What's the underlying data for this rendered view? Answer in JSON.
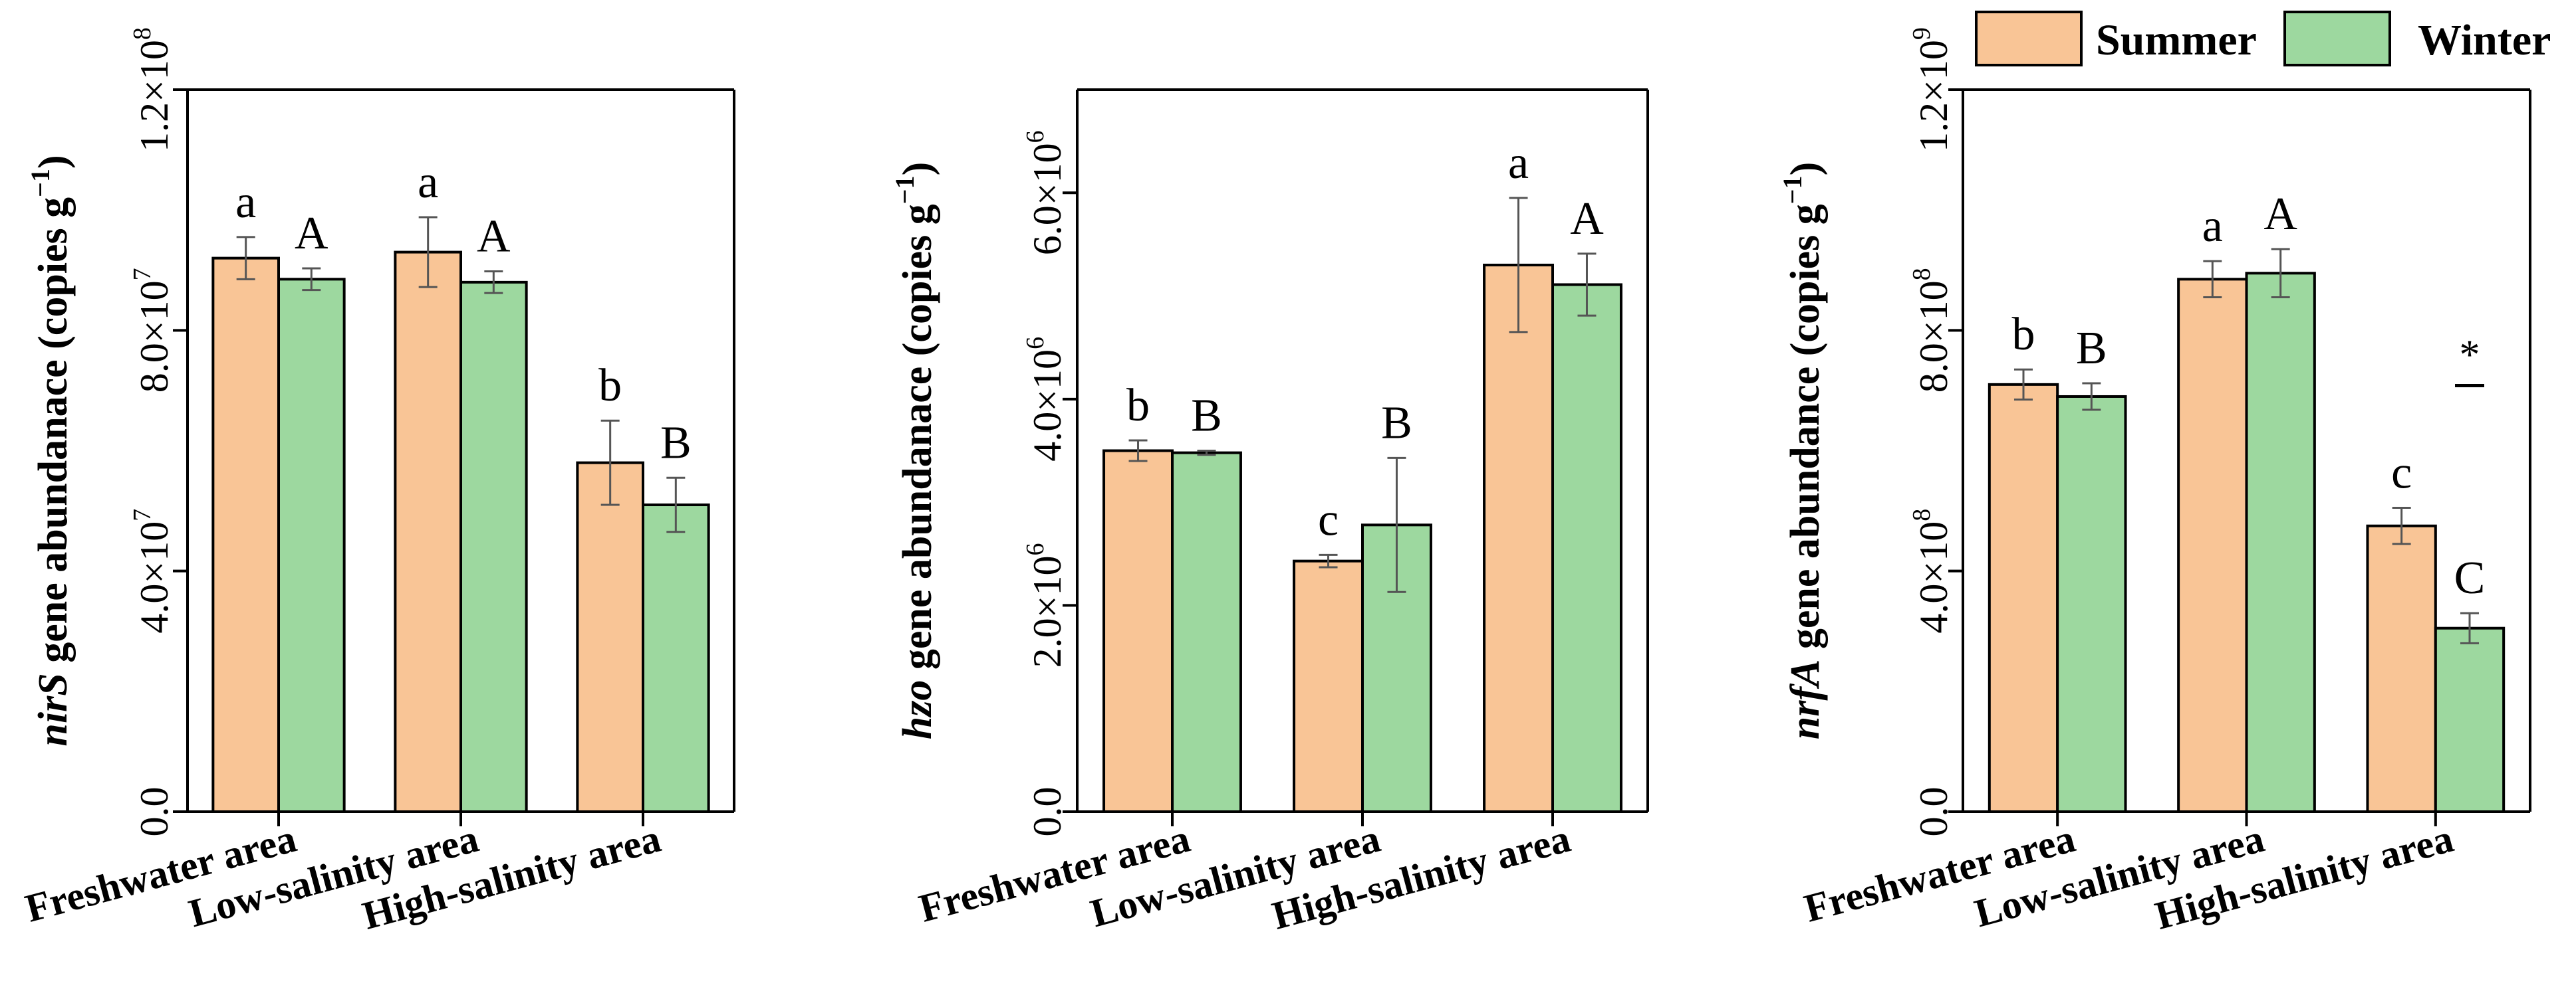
{
  "legend": {
    "entries": [
      {
        "name": "Summer",
        "color": "#F9C596"
      },
      {
        "name": "Winter",
        "color": "#9DD89F"
      }
    ],
    "placement": "top-right"
  },
  "chart_data": [
    {
      "type": "bar",
      "categories": [
        "Freshwater area",
        "Low-salinity area",
        "High-salinity area"
      ],
      "series": [
        {
          "name": "Summer",
          "color": "#F9C596",
          "values": [
            92000000,
            93000000,
            58000000
          ],
          "errors": [
            3500000,
            5800000,
            7000000
          ],
          "letters": [
            "a",
            "a",
            "b"
          ]
        },
        {
          "name": "Winter",
          "color": "#9DD89F",
          "values": [
            88500000,
            88000000,
            51000000
          ],
          "errors": [
            1800000,
            1800000,
            4500000
          ],
          "letters": [
            "A",
            "A",
            "B"
          ]
        }
      ],
      "ylabel_italic": "nirS",
      "ylabel_rest": " gene abundanace (copies g",
      "ylabel_sup": "−1",
      "ylabel_close": ")",
      "ylim": [
        0,
        120000000
      ],
      "yticks": [
        {
          "v": 0,
          "label": "0.0"
        },
        {
          "v": 40000000,
          "label": "4.0×10",
          "sup": "7"
        },
        {
          "v": 80000000,
          "label": "8.0×10",
          "sup": "7"
        },
        {
          "v": 120000000,
          "label": "1.2×10",
          "sup": "8"
        }
      ],
      "significance": []
    },
    {
      "type": "bar",
      "categories": [
        "Freshwater area",
        "Low-salinity area",
        "High-salinity area"
      ],
      "series": [
        {
          "name": "Summer",
          "color": "#F9C596",
          "values": [
            3500000,
            2430000,
            5300000
          ],
          "errors": [
            100000,
            60000,
            650000
          ],
          "letters": [
            "b",
            "c",
            "a"
          ]
        },
        {
          "name": "Winter",
          "color": "#9DD89F",
          "values": [
            3480000,
            2780000,
            5110000
          ],
          "errors": [
            20000,
            650000,
            300000
          ],
          "letters": [
            "B",
            "B",
            "A"
          ]
        }
      ],
      "ylabel_italic": "hzo",
      "ylabel_rest": " gene abundanace (copies g",
      "ylabel_sup": "−1",
      "ylabel_close": ")",
      "ylim": [
        0,
        7000000
      ],
      "yticks": [
        {
          "v": 0,
          "label": "0.0"
        },
        {
          "v": 2000000,
          "label": "2.0×10",
          "sup": "6"
        },
        {
          "v": 4000000,
          "label": "4.0×10",
          "sup": "6"
        },
        {
          "v": 6000000,
          "label": "6.0×10",
          "sup": "6"
        }
      ],
      "significance": []
    },
    {
      "type": "bar",
      "categories": [
        "Freshwater area",
        "Low-salinity area",
        "High-salinity area"
      ],
      "series": [
        {
          "name": "Summer",
          "color": "#F9C596",
          "values": [
            710000000,
            885000000,
            475000000
          ],
          "errors": [
            25000000,
            30000000,
            30000000
          ],
          "letters": [
            "b",
            "a",
            "c"
          ]
        },
        {
          "name": "Winter",
          "color": "#9DD89F",
          "values": [
            690000000,
            895000000,
            305000000
          ],
          "errors": [
            22000000,
            40000000,
            25000000
          ],
          "letters": [
            "B",
            "A",
            "C"
          ]
        }
      ],
      "ylabel_italic": "nrfA",
      "ylabel_rest": " gene abundance (copies g",
      "ylabel_sup": "−1",
      "ylabel_close": ")",
      "ylim": [
        0,
        1200000000
      ],
      "yticks": [
        {
          "v": 0,
          "label": "0.0"
        },
        {
          "v": 400000000,
          "label": "4.0×10",
          "sup": "8"
        },
        {
          "v": 800000000,
          "label": "8.0×10",
          "sup": "8"
        },
        {
          "v": 1200000000,
          "label": "1.2×10",
          "sup": "9"
        }
      ],
      "significance": [
        {
          "category": 2,
          "label": "*"
        }
      ]
    }
  ]
}
